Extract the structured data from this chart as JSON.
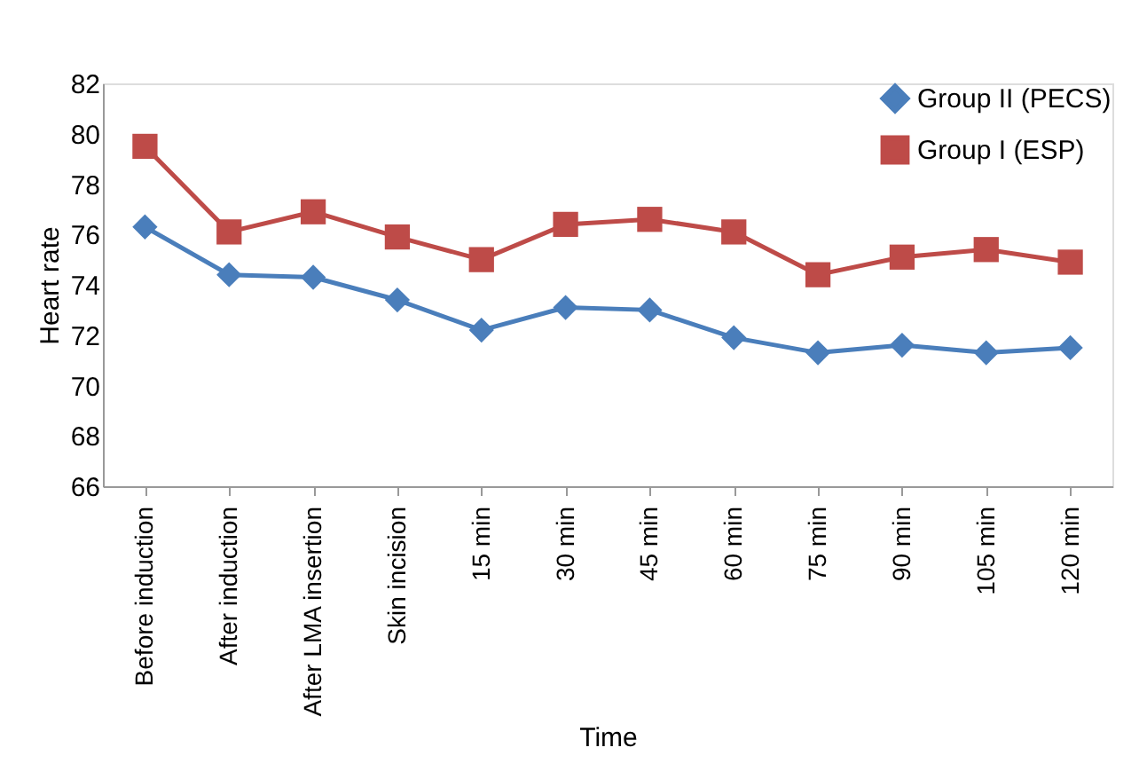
{
  "chart_data": {
    "type": "line",
    "xlabel": "Time",
    "ylabel": "Heart  rate",
    "categories": [
      "Before induction",
      "After induction",
      "After LMA insertion",
      "Skin incision",
      "15 min",
      "30 min",
      "45 min",
      "60 min",
      "75 min",
      "90 min",
      "105 min",
      "120 min"
    ],
    "series": [
      {
        "name": "Group II (PECS)",
        "color": "#4a7ebb",
        "marker": "diamond",
        "values": [
          76.3,
          74.4,
          74.3,
          73.4,
          72.2,
          73.1,
          73.0,
          71.9,
          71.3,
          71.6,
          71.3,
          71.5
        ]
      },
      {
        "name": "Group I (ESP)",
        "color": "#be4b48",
        "marker": "square",
        "values": [
          79.5,
          76.1,
          76.9,
          75.9,
          75.0,
          76.4,
          76.6,
          76.1,
          74.4,
          75.1,
          75.4,
          74.9
        ]
      }
    ],
    "ylim": [
      66,
      82
    ],
    "yticks": [
      66,
      68,
      70,
      72,
      74,
      76,
      78,
      80,
      82
    ],
    "grid": false,
    "legend": "top right",
    "line_style": "solid"
  }
}
